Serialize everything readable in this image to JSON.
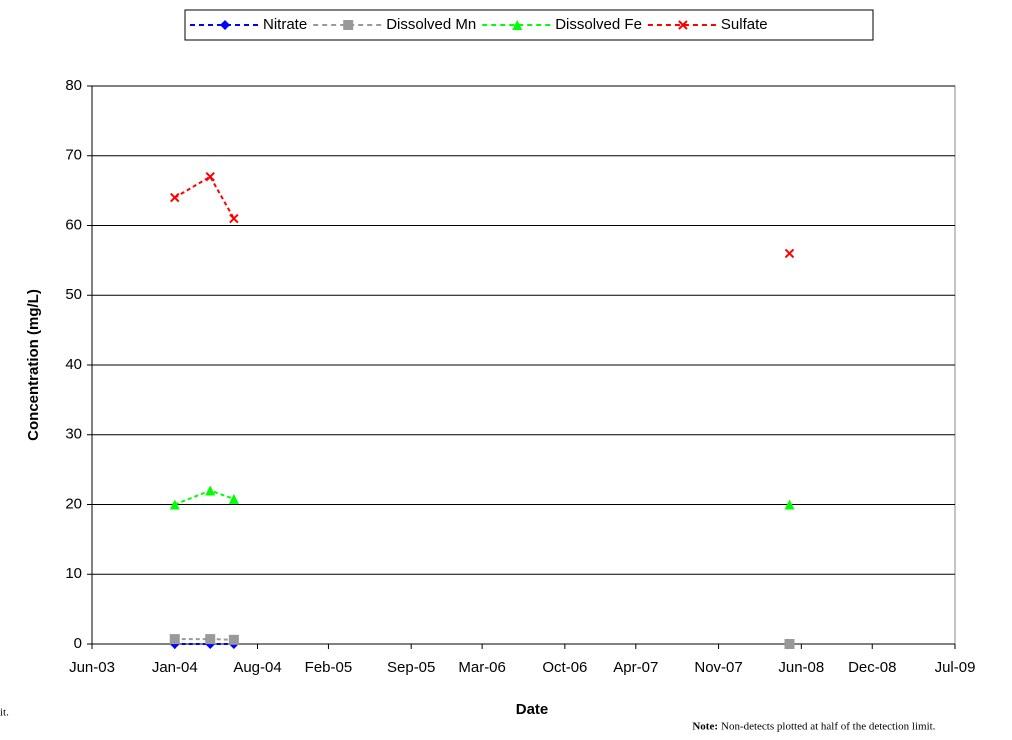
{
  "chart_data": {
    "type": "line",
    "xlabel": "Date",
    "ylabel": "Concentration (mg/L)",
    "note_label": "Note:",
    "note": "Non-detects plotted at half of the detection limit.",
    "clipped_text": "it.",
    "x": [
      "2004-01",
      "2004-04",
      "2004-06",
      null,
      "2008-05"
    ],
    "series": [
      {
        "name": "Nitrate",
        "color": "#0000ff",
        "marker": "diamond",
        "values": [
          0,
          0,
          0,
          null,
          null
        ]
      },
      {
        "name": "Dissolved Mn",
        "color": "#999999",
        "marker": "square",
        "values": [
          0.7,
          0.7,
          0.6,
          null,
          0
        ]
      },
      {
        "name": "Dissolved Fe",
        "color": "#00ff00",
        "marker": "triangle",
        "values": [
          20,
          22,
          20.8,
          null,
          20
        ]
      },
      {
        "name": "Sulfate",
        "color": "#ff0000",
        "marker": "x",
        "values": [
          64,
          67,
          61,
          null,
          56
        ]
      }
    ],
    "xlim": [
      "2003-06",
      "2009-07"
    ],
    "xticks": [
      {
        "value": "2003-06",
        "label": "Jun-03"
      },
      {
        "value": "2004-01",
        "label": "Jan-04"
      },
      {
        "value": "2004-08",
        "label": "Aug-04"
      },
      {
        "value": "2005-02",
        "label": "Feb-05"
      },
      {
        "value": "2005-09",
        "label": "Sep-05"
      },
      {
        "value": "2006-03",
        "label": "Mar-06"
      },
      {
        "value": "2006-10",
        "label": "Oct-06"
      },
      {
        "value": "2007-04",
        "label": "Apr-07"
      },
      {
        "value": "2007-11",
        "label": "Nov-07"
      },
      {
        "value": "2008-06",
        "label": "Jun-08"
      },
      {
        "value": "2008-12",
        "label": "Dec-08"
      },
      {
        "value": "2009-07",
        "label": "Jul-09"
      }
    ],
    "ylim": [
      0,
      80
    ],
    "yticks": [
      0,
      10,
      20,
      30,
      40,
      50,
      60,
      70,
      80
    ],
    "grid": true,
    "legend": "top"
  }
}
